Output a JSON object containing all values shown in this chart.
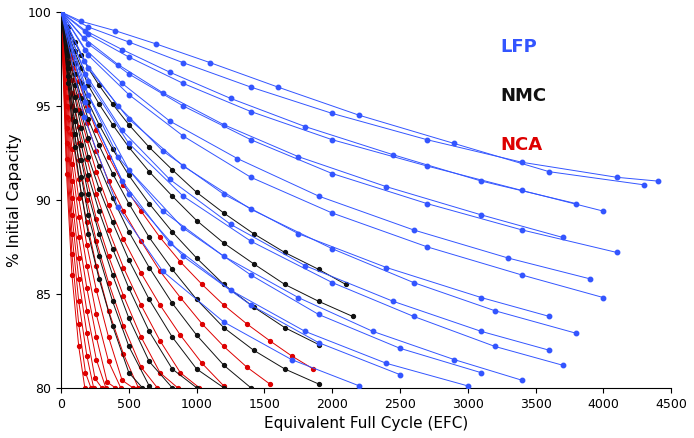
{
  "xlabel": "Equivalent Full Cycle (EFC)",
  "ylabel": "% Initial Capacity",
  "xlim": [
    0,
    4500
  ],
  "ylim": [
    80,
    100
  ],
  "xticks": [
    0,
    500,
    1000,
    1500,
    2000,
    2500,
    3000,
    3500,
    4000,
    4500
  ],
  "yticks": [
    80,
    85,
    90,
    95,
    100
  ],
  "colors": {
    "LFP": "#3355ff",
    "NMC": "#111111",
    "NCA": "#dd0000"
  },
  "background": "#ffffff",
  "lfp_curves": [
    [
      [
        0,
        100
      ],
      [
        150,
        99.5
      ],
      [
        400,
        99.0
      ],
      [
        700,
        98.3
      ],
      [
        1100,
        97.3
      ],
      [
        1600,
        96.0
      ],
      [
        2200,
        94.5
      ],
      [
        2900,
        93.0
      ],
      [
        3600,
        91.5
      ],
      [
        4300,
        90.8
      ]
    ],
    [
      [
        0,
        100
      ],
      [
        200,
        99.2
      ],
      [
        500,
        98.4
      ],
      [
        900,
        97.3
      ],
      [
        1400,
        96.0
      ],
      [
        2000,
        94.6
      ],
      [
        2700,
        93.2
      ],
      [
        3400,
        92.0
      ],
      [
        4100,
        91.2
      ],
      [
        4400,
        91.0
      ]
    ],
    [
      [
        0,
        100
      ],
      [
        180,
        99.0
      ],
      [
        450,
        98.0
      ],
      [
        800,
        96.8
      ],
      [
        1250,
        95.4
      ],
      [
        1800,
        93.9
      ],
      [
        2450,
        92.4
      ],
      [
        3100,
        91.0
      ],
      [
        3800,
        89.8
      ]
    ],
    [
      [
        0,
        100
      ],
      [
        200,
        98.8
      ],
      [
        500,
        97.6
      ],
      [
        900,
        96.2
      ],
      [
        1400,
        94.7
      ],
      [
        2000,
        93.2
      ],
      [
        2700,
        91.8
      ],
      [
        3400,
        90.5
      ],
      [
        4000,
        89.4
      ]
    ],
    [
      [
        0,
        100
      ],
      [
        170,
        98.6
      ],
      [
        420,
        97.2
      ],
      [
        750,
        95.7
      ],
      [
        1200,
        94.0
      ],
      [
        1750,
        92.3
      ],
      [
        2400,
        90.7
      ],
      [
        3100,
        89.2
      ],
      [
        3700,
        88.0
      ]
    ],
    [
      [
        0,
        100
      ],
      [
        200,
        98.3
      ],
      [
        500,
        96.7
      ],
      [
        900,
        95.0
      ],
      [
        1400,
        93.2
      ],
      [
        2000,
        91.4
      ],
      [
        2700,
        89.8
      ],
      [
        3400,
        88.4
      ],
      [
        4100,
        87.2
      ]
    ],
    [
      [
        0,
        100
      ],
      [
        180,
        98.0
      ],
      [
        450,
        96.2
      ],
      [
        800,
        94.2
      ],
      [
        1300,
        92.2
      ],
      [
        1900,
        90.2
      ],
      [
        2600,
        88.4
      ],
      [
        3300,
        86.9
      ],
      [
        3900,
        85.8
      ]
    ],
    [
      [
        0,
        100
      ],
      [
        200,
        97.7
      ],
      [
        500,
        95.6
      ],
      [
        900,
        93.4
      ],
      [
        1400,
        91.2
      ],
      [
        2000,
        89.3
      ],
      [
        2700,
        87.5
      ],
      [
        3400,
        86.0
      ],
      [
        4000,
        84.8
      ]
    ],
    [
      [
        0,
        100
      ],
      [
        170,
        97.4
      ],
      [
        420,
        95.0
      ],
      [
        750,
        92.6
      ],
      [
        1200,
        90.3
      ],
      [
        1750,
        88.2
      ],
      [
        2400,
        86.4
      ],
      [
        3100,
        84.8
      ],
      [
        3600,
        83.8
      ]
    ],
    [
      [
        0,
        100
      ],
      [
        200,
        97.0
      ],
      [
        500,
        94.3
      ],
      [
        900,
        91.8
      ],
      [
        1400,
        89.5
      ],
      [
        2000,
        87.4
      ],
      [
        2600,
        85.6
      ],
      [
        3200,
        84.1
      ],
      [
        3800,
        82.9
      ]
    ],
    [
      [
        0,
        100
      ],
      [
        180,
        96.7
      ],
      [
        450,
        93.7
      ],
      [
        800,
        91.1
      ],
      [
        1250,
        88.7
      ],
      [
        1800,
        86.5
      ],
      [
        2450,
        84.6
      ],
      [
        3100,
        83.0
      ],
      [
        3600,
        82.0
      ]
    ],
    [
      [
        0,
        100
      ],
      [
        200,
        96.3
      ],
      [
        500,
        93.0
      ],
      [
        900,
        90.2
      ],
      [
        1400,
        87.8
      ],
      [
        2000,
        85.6
      ],
      [
        2600,
        83.8
      ],
      [
        3200,
        82.2
      ],
      [
        3700,
        81.2
      ]
    ],
    [
      [
        0,
        100
      ],
      [
        170,
        96.0
      ],
      [
        420,
        92.3
      ],
      [
        750,
        89.4
      ],
      [
        1200,
        87.0
      ],
      [
        1750,
        84.8
      ],
      [
        2300,
        83.0
      ],
      [
        2900,
        81.5
      ],
      [
        3400,
        80.4
      ]
    ],
    [
      [
        0,
        100
      ],
      [
        200,
        95.6
      ],
      [
        500,
        91.6
      ],
      [
        900,
        88.5
      ],
      [
        1400,
        86.0
      ],
      [
        1900,
        83.9
      ],
      [
        2500,
        82.1
      ],
      [
        3100,
        80.8
      ]
    ],
    [
      [
        0,
        100
      ],
      [
        180,
        95.2
      ],
      [
        450,
        91.0
      ],
      [
        800,
        87.7
      ],
      [
        1250,
        85.2
      ],
      [
        1800,
        83.0
      ],
      [
        2400,
        81.3
      ],
      [
        3000,
        80.1
      ]
    ],
    [
      [
        0,
        100
      ],
      [
        200,
        94.8
      ],
      [
        500,
        90.3
      ],
      [
        900,
        87.0
      ],
      [
        1400,
        84.4
      ],
      [
        1900,
        82.4
      ],
      [
        2500,
        80.7
      ]
    ],
    [
      [
        0,
        100
      ],
      [
        170,
        94.4
      ],
      [
        420,
        89.6
      ],
      [
        750,
        86.2
      ],
      [
        1200,
        83.5
      ],
      [
        1700,
        81.5
      ],
      [
        2200,
        80.1
      ]
    ]
  ],
  "nmc_curves": [
    [
      [
        0,
        100
      ],
      [
        50,
        99.2
      ],
      [
        100,
        98.4
      ],
      [
        150,
        97.7
      ],
      [
        200,
        97.0
      ],
      [
        280,
        96.1
      ],
      [
        380,
        95.1
      ],
      [
        500,
        94.0
      ],
      [
        650,
        92.8
      ],
      [
        820,
        91.6
      ],
      [
        1000,
        90.4
      ],
      [
        1200,
        89.3
      ],
      [
        1420,
        88.2
      ],
      [
        1650,
        87.2
      ],
      [
        1900,
        86.3
      ],
      [
        2100,
        85.5
      ]
    ],
    [
      [
        0,
        100
      ],
      [
        50,
        98.9
      ],
      [
        100,
        97.9
      ],
      [
        150,
        97.0
      ],
      [
        200,
        96.1
      ],
      [
        280,
        95.1
      ],
      [
        380,
        94.0
      ],
      [
        500,
        92.8
      ],
      [
        650,
        91.5
      ],
      [
        820,
        90.2
      ],
      [
        1000,
        88.9
      ],
      [
        1200,
        87.7
      ],
      [
        1420,
        86.6
      ],
      [
        1650,
        85.5
      ],
      [
        1900,
        84.6
      ],
      [
        2150,
        83.8
      ]
    ],
    [
      [
        0,
        100
      ],
      [
        50,
        98.6
      ],
      [
        100,
        97.3
      ],
      [
        150,
        96.2
      ],
      [
        200,
        95.2
      ],
      [
        280,
        94.0
      ],
      [
        380,
        92.7
      ],
      [
        500,
        91.3
      ],
      [
        650,
        89.8
      ],
      [
        820,
        88.3
      ],
      [
        1000,
        86.9
      ],
      [
        1200,
        85.5
      ],
      [
        1420,
        84.3
      ],
      [
        1650,
        83.2
      ],
      [
        1900,
        82.3
      ]
    ],
    [
      [
        0,
        100
      ],
      [
        50,
        98.3
      ],
      [
        100,
        96.7
      ],
      [
        150,
        95.4
      ],
      [
        200,
        94.3
      ],
      [
        280,
        92.9
      ],
      [
        380,
        91.4
      ],
      [
        500,
        89.8
      ],
      [
        650,
        88.0
      ],
      [
        820,
        86.3
      ],
      [
        1000,
        84.7
      ],
      [
        1200,
        83.2
      ],
      [
        1420,
        82.0
      ],
      [
        1650,
        81.0
      ],
      [
        1900,
        80.2
      ]
    ],
    [
      [
        0,
        100
      ],
      [
        50,
        98.0
      ],
      [
        100,
        96.1
      ],
      [
        150,
        94.6
      ],
      [
        200,
        93.3
      ],
      [
        280,
        91.8
      ],
      [
        380,
        90.1
      ],
      [
        500,
        88.3
      ],
      [
        650,
        86.4
      ],
      [
        820,
        84.5
      ],
      [
        1000,
        82.8
      ],
      [
        1200,
        81.2
      ],
      [
        1400,
        80.0
      ]
    ],
    [
      [
        0,
        100
      ],
      [
        50,
        97.7
      ],
      [
        100,
        95.5
      ],
      [
        150,
        93.8
      ],
      [
        200,
        92.3
      ],
      [
        280,
        90.6
      ],
      [
        380,
        88.8
      ],
      [
        500,
        86.8
      ],
      [
        650,
        84.7
      ],
      [
        820,
        82.7
      ],
      [
        1000,
        81.0
      ],
      [
        1200,
        80.0
      ]
    ],
    [
      [
        0,
        100
      ],
      [
        50,
        97.3
      ],
      [
        100,
        94.8
      ],
      [
        150,
        92.9
      ],
      [
        200,
        91.3
      ],
      [
        280,
        89.4
      ],
      [
        380,
        87.4
      ],
      [
        500,
        85.3
      ],
      [
        650,
        83.0
      ],
      [
        820,
        81.0
      ],
      [
        1000,
        80.0
      ]
    ],
    [
      [
        0,
        100
      ],
      [
        50,
        97.0
      ],
      [
        100,
        94.2
      ],
      [
        150,
        92.1
      ],
      [
        200,
        90.3
      ],
      [
        280,
        88.2
      ],
      [
        380,
        86.0
      ],
      [
        500,
        83.7
      ],
      [
        650,
        81.4
      ],
      [
        820,
        80.0
      ]
    ],
    [
      [
        0,
        100
      ],
      [
        50,
        96.6
      ],
      [
        100,
        93.5
      ],
      [
        150,
        91.2
      ],
      [
        200,
        89.2
      ],
      [
        280,
        87.0
      ],
      [
        380,
        84.6
      ],
      [
        500,
        82.2
      ],
      [
        650,
        80.1
      ]
    ],
    [
      [
        0,
        100
      ],
      [
        50,
        96.2
      ],
      [
        100,
        92.8
      ],
      [
        150,
        90.3
      ],
      [
        200,
        88.2
      ],
      [
        280,
        85.8
      ],
      [
        380,
        83.3
      ],
      [
        500,
        80.8
      ],
      [
        600,
        80.0
      ]
    ]
  ],
  "nca_curves": [
    [
      [
        0,
        100
      ],
      [
        40,
        98.8
      ],
      [
        80,
        97.6
      ],
      [
        130,
        96.3
      ],
      [
        190,
        95.0
      ],
      [
        260,
        93.7
      ],
      [
        350,
        92.3
      ],
      [
        460,
        90.8
      ],
      [
        590,
        89.4
      ],
      [
        730,
        88.0
      ],
      [
        880,
        86.7
      ],
      [
        1040,
        85.5
      ],
      [
        1200,
        84.4
      ],
      [
        1370,
        83.4
      ],
      [
        1540,
        82.5
      ],
      [
        1700,
        81.7
      ],
      [
        1860,
        81.0
      ]
    ],
    [
      [
        0,
        100
      ],
      [
        40,
        98.5
      ],
      [
        80,
        97.0
      ],
      [
        130,
        95.6
      ],
      [
        190,
        94.1
      ],
      [
        260,
        92.6
      ],
      [
        350,
        91.0
      ],
      [
        460,
        89.4
      ],
      [
        590,
        87.8
      ],
      [
        730,
        86.2
      ],
      [
        880,
        84.8
      ],
      [
        1040,
        83.4
      ],
      [
        1200,
        82.2
      ],
      [
        1370,
        81.1
      ],
      [
        1540,
        80.2
      ]
    ],
    [
      [
        0,
        100
      ],
      [
        40,
        98.2
      ],
      [
        80,
        96.4
      ],
      [
        130,
        94.8
      ],
      [
        190,
        93.2
      ],
      [
        260,
        91.5
      ],
      [
        350,
        89.7
      ],
      [
        460,
        87.9
      ],
      [
        590,
        86.1
      ],
      [
        730,
        84.4
      ],
      [
        880,
        82.8
      ],
      [
        1040,
        81.3
      ],
      [
        1200,
        80.1
      ]
    ],
    [
      [
        0,
        100
      ],
      [
        40,
        97.8
      ],
      [
        80,
        95.7
      ],
      [
        130,
        93.9
      ],
      [
        190,
        92.2
      ],
      [
        260,
        90.3
      ],
      [
        350,
        88.4
      ],
      [
        460,
        86.4
      ],
      [
        590,
        84.4
      ],
      [
        730,
        82.5
      ],
      [
        880,
        80.8
      ],
      [
        1020,
        80.0
      ]
    ],
    [
      [
        0,
        100
      ],
      [
        40,
        97.4
      ],
      [
        80,
        95.0
      ],
      [
        130,
        93.0
      ],
      [
        190,
        91.1
      ],
      [
        260,
        89.0
      ],
      [
        350,
        87.0
      ],
      [
        460,
        84.9
      ],
      [
        590,
        82.7
      ],
      [
        730,
        80.8
      ],
      [
        860,
        80.0
      ]
    ],
    [
      [
        0,
        100
      ],
      [
        40,
        97.0
      ],
      [
        80,
        94.3
      ],
      [
        130,
        92.1
      ],
      [
        190,
        90.0
      ],
      [
        260,
        87.8
      ],
      [
        350,
        85.6
      ],
      [
        460,
        83.3
      ],
      [
        590,
        81.1
      ],
      [
        710,
        80.0
      ]
    ],
    [
      [
        0,
        100
      ],
      [
        40,
        96.5
      ],
      [
        80,
        93.5
      ],
      [
        130,
        91.1
      ],
      [
        190,
        88.8
      ],
      [
        260,
        86.5
      ],
      [
        350,
        84.1
      ],
      [
        460,
        81.8
      ],
      [
        570,
        80.0
      ]
    ],
    [
      [
        0,
        100
      ],
      [
        40,
        96.0
      ],
      [
        80,
        92.7
      ],
      [
        130,
        90.1
      ],
      [
        190,
        87.6
      ],
      [
        260,
        85.2
      ],
      [
        350,
        82.7
      ],
      [
        450,
        80.4
      ],
      [
        530,
        80.0
      ]
    ],
    [
      [
        0,
        100
      ],
      [
        40,
        95.5
      ],
      [
        80,
        91.9
      ],
      [
        130,
        89.1
      ],
      [
        190,
        86.5
      ],
      [
        260,
        83.9
      ],
      [
        350,
        81.4
      ],
      [
        440,
        80.0
      ]
    ],
    [
      [
        0,
        100
      ],
      [
        40,
        95.0
      ],
      [
        80,
        91.0
      ],
      [
        130,
        88.0
      ],
      [
        190,
        85.3
      ],
      [
        260,
        82.7
      ],
      [
        340,
        80.3
      ],
      [
        400,
        80.0
      ]
    ],
    [
      [
        0,
        100
      ],
      [
        40,
        94.4
      ],
      [
        80,
        90.1
      ],
      [
        130,
        86.9
      ],
      [
        190,
        84.1
      ],
      [
        260,
        81.5
      ],
      [
        330,
        80.0
      ]
    ],
    [
      [
        0,
        100
      ],
      [
        40,
        93.8
      ],
      [
        80,
        89.2
      ],
      [
        130,
        85.8
      ],
      [
        190,
        82.9
      ],
      [
        250,
        80.5
      ],
      [
        300,
        80.0
      ]
    ],
    [
      [
        0,
        100
      ],
      [
        40,
        93.0
      ],
      [
        80,
        88.2
      ],
      [
        130,
        84.6
      ],
      [
        190,
        81.7
      ],
      [
        240,
        80.0
      ]
    ],
    [
      [
        0,
        100
      ],
      [
        40,
        92.2
      ],
      [
        80,
        87.1
      ],
      [
        130,
        83.4
      ],
      [
        180,
        80.8
      ],
      [
        220,
        80.0
      ]
    ],
    [
      [
        0,
        100
      ],
      [
        40,
        91.4
      ],
      [
        80,
        86.0
      ],
      [
        130,
        82.2
      ],
      [
        175,
        80.0
      ]
    ]
  ]
}
